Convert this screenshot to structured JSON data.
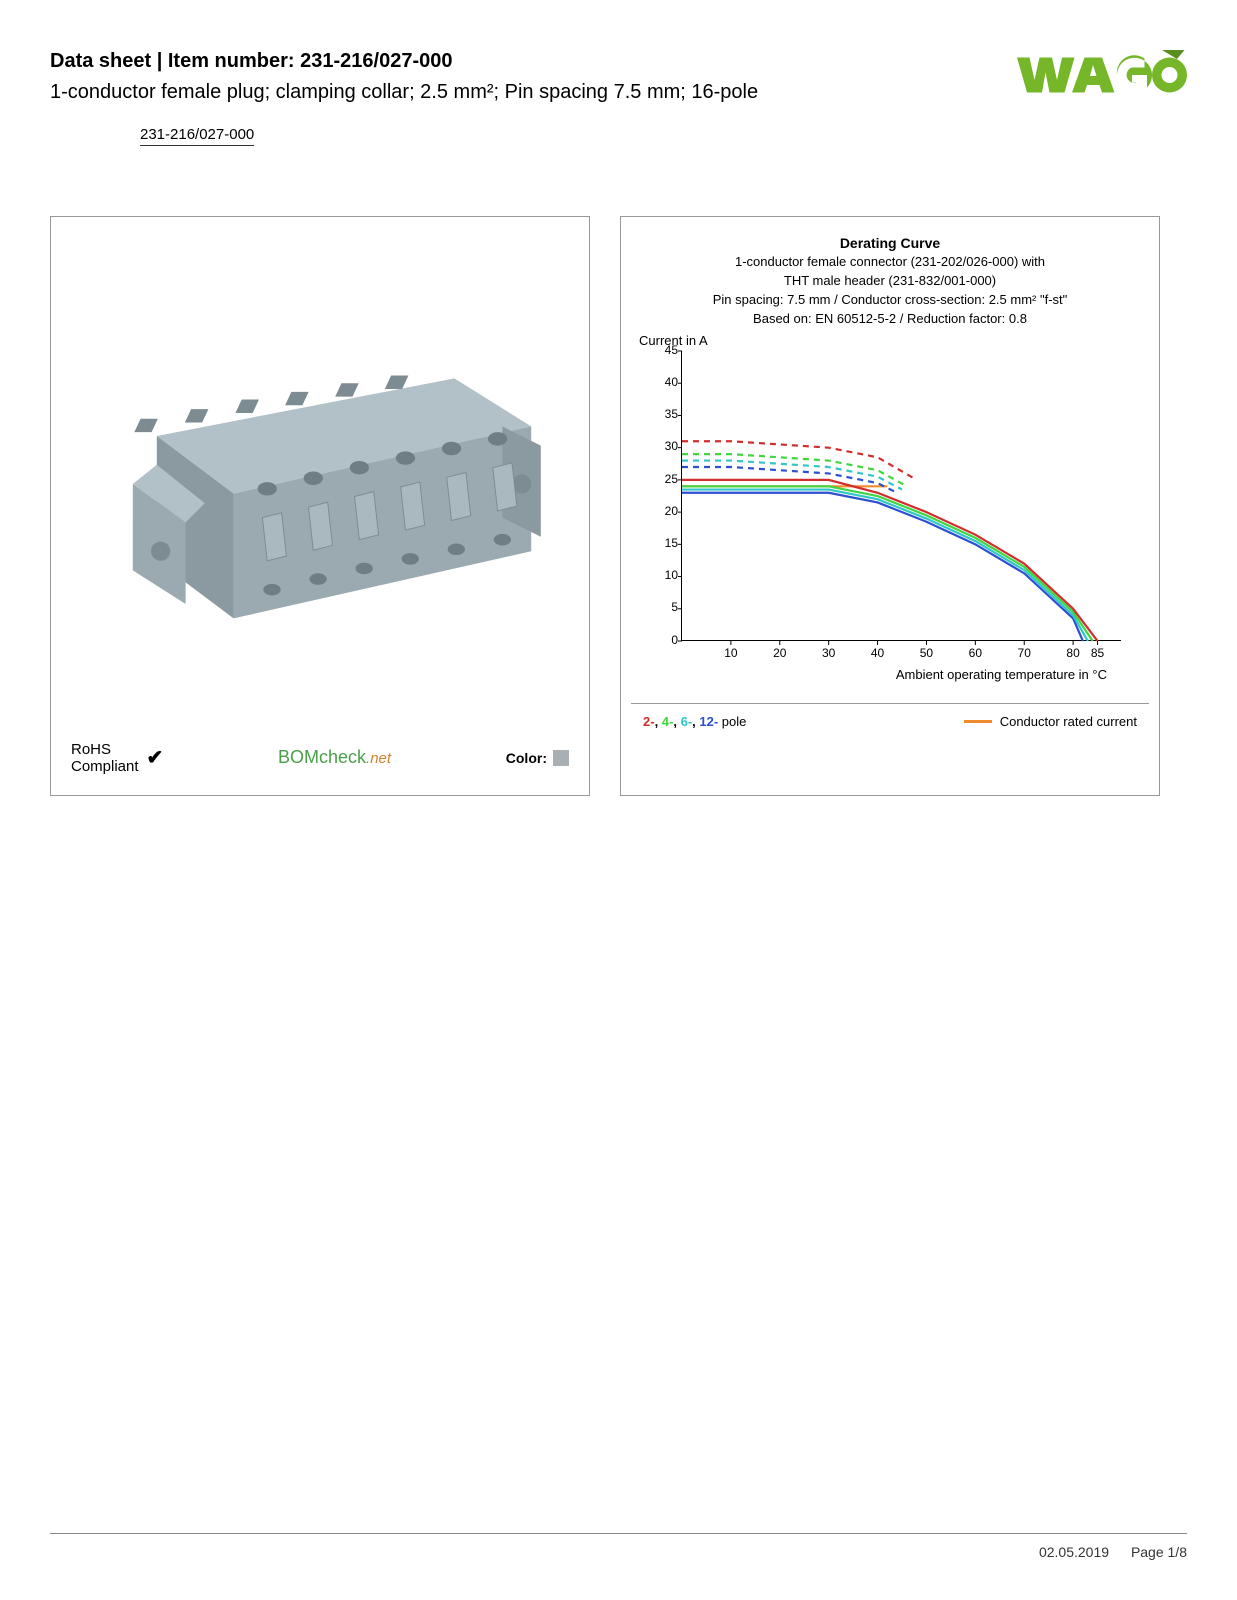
{
  "header": {
    "title_prefix": "Data sheet",
    "title_sep": " | ",
    "title_label": "Item number: ",
    "item_number": "231-216/027-000",
    "subtitle": "1-conductor female plug; clamping collar; 2.5 mm²; Pin spacing 7.5 mm; 16-pole",
    "item_link": "231-216/027-000"
  },
  "logo": {
    "text": "WAGO",
    "fill": "#76b72a",
    "accent": "#5a8f1f"
  },
  "left_panel": {
    "product_color": "#a8b6bd",
    "product_shadow": "#8b9aa1",
    "rohs_line1": "RoHS",
    "rohs_line2": "Compliant",
    "check_glyph": "✔",
    "bomcheck_main": "BOMcheck",
    "bomcheck_suffix": ".net",
    "color_label": "Color:",
    "color_swatch": "#a9b0b3"
  },
  "chart": {
    "title": "Derating Curve",
    "line1": "1-conductor female connector (231-202/026-000) with",
    "line2": "THT male header (231-832/001-000)",
    "line3": "Pin spacing: 7.5 mm / Conductor cross-section: 2.5 mm² \"f-st\"",
    "line4": "Based on: EN 60512-5-2 / Reduction factor: 0.8",
    "y_axis_label": "Current in A",
    "x_axis_label": "Ambient operating temperature in °C",
    "ylim": [
      0,
      45
    ],
    "xlim": [
      0,
      90
    ],
    "yticks": [
      0,
      5,
      10,
      15,
      20,
      25,
      30,
      35,
      40,
      45
    ],
    "xticks": [
      10,
      20,
      30,
      40,
      50,
      60,
      70,
      80,
      85
    ],
    "background_color": "#ffffff",
    "grid_color": "#cccccc",
    "series": {
      "pole2": {
        "color": "#d22d2d",
        "solid": [
          [
            0,
            25
          ],
          [
            30,
            25
          ],
          [
            40,
            23
          ],
          [
            50,
            20
          ],
          [
            60,
            16.5
          ],
          [
            70,
            12
          ],
          [
            80,
            5
          ],
          [
            85,
            0
          ]
        ],
        "dashed": [
          [
            0,
            31
          ],
          [
            10,
            31
          ],
          [
            20,
            30.5
          ],
          [
            30,
            30
          ],
          [
            40,
            28.5
          ],
          [
            48,
            25
          ]
        ]
      },
      "pole4": {
        "color": "#3fd63f",
        "solid": [
          [
            0,
            24
          ],
          [
            30,
            24
          ],
          [
            40,
            22.5
          ],
          [
            50,
            19.5
          ],
          [
            60,
            16
          ],
          [
            70,
            11.5
          ],
          [
            80,
            4.5
          ],
          [
            84,
            0
          ]
        ],
        "dashed": [
          [
            0,
            29
          ],
          [
            10,
            29
          ],
          [
            20,
            28.5
          ],
          [
            30,
            28
          ],
          [
            40,
            26.5
          ],
          [
            46,
            24
          ]
        ]
      },
      "pole6": {
        "color": "#2fc7c7",
        "solid": [
          [
            0,
            23.5
          ],
          [
            30,
            23.5
          ],
          [
            40,
            22
          ],
          [
            50,
            19
          ],
          [
            60,
            15.5
          ],
          [
            70,
            11
          ],
          [
            80,
            4
          ],
          [
            83,
            0
          ]
        ],
        "dashed": [
          [
            0,
            28
          ],
          [
            10,
            28
          ],
          [
            20,
            27.5
          ],
          [
            30,
            27
          ],
          [
            40,
            25.5
          ],
          [
            45,
            23.5
          ]
        ]
      },
      "pole12": {
        "color": "#2d4fd2",
        "solid": [
          [
            0,
            23
          ],
          [
            30,
            23
          ],
          [
            40,
            21.5
          ],
          [
            50,
            18.5
          ],
          [
            60,
            15
          ],
          [
            70,
            10.5
          ],
          [
            80,
            3.5
          ],
          [
            82,
            0
          ]
        ],
        "dashed": [
          [
            0,
            27
          ],
          [
            10,
            27
          ],
          [
            20,
            26.5
          ],
          [
            30,
            26
          ],
          [
            40,
            24.5
          ],
          [
            44,
            23
          ]
        ]
      },
      "conductor_rated": {
        "color": "#f18b2e",
        "solid": [
          [
            0,
            24
          ],
          [
            42,
            24
          ]
        ]
      }
    },
    "legend": {
      "prefix_2": "2-",
      "prefix_4": "4-",
      "prefix_6": "6-",
      "prefix_12": "12-",
      "suffix": " pole",
      "sep": ", ",
      "conductor_label": "Conductor rated current",
      "colors": {
        "p2": "#d22d2d",
        "p4": "#3fd63f",
        "p6": "#2fc7c7",
        "p12": "#2d4fd2"
      }
    }
  },
  "footer": {
    "date": "02.05.2019",
    "page": "Page 1/8"
  }
}
